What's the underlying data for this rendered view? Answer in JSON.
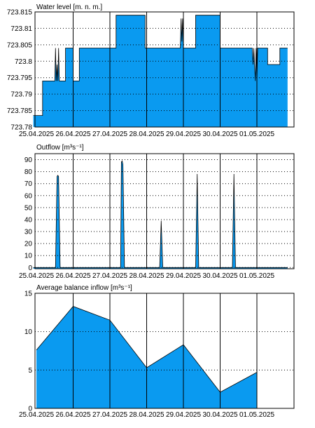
{
  "colors": {
    "fill": "#0a9af0",
    "line": "#000000",
    "grid": "#000000"
  },
  "chart_data": [
    {
      "type": "area",
      "title": "Water level [m. n. m.]",
      "x_axis": "time",
      "x_ticks": [
        "25.04.2025",
        "26.04.2025",
        "27.04.2025",
        "28.04.2025",
        "29.04.2025",
        "30.04.2025",
        "01.05.2025"
      ],
      "ylim": [
        723.78,
        723.815
      ],
      "y_ticks": [
        "723.78",
        "723.785",
        "723.79",
        "723.795",
        "723.8",
        "723.805",
        "723.81",
        "723.815"
      ],
      "grid": true,
      "points": [
        [
          "2025-04-24 22:00",
          723.7835
        ],
        [
          "2025-04-25 04:00",
          723.7835
        ],
        [
          "2025-04-25 04:00",
          723.794
        ],
        [
          "2025-04-25 12:00",
          723.794
        ],
        [
          "2025-04-25 12:30",
          723.804
        ],
        [
          "2025-04-25 13:00",
          723.794
        ],
        [
          "2025-04-25 13:30",
          723.799
        ],
        [
          "2025-04-25 14:00",
          723.794
        ],
        [
          "2025-04-25 14:30",
          723.804
        ],
        [
          "2025-04-25 15:00",
          723.794
        ],
        [
          "2025-04-25 19:00",
          723.794
        ],
        [
          "2025-04-25 19:00",
          723.804
        ],
        [
          "2025-04-26 00:00",
          723.804
        ],
        [
          "2025-04-26 00:00",
          723.794
        ],
        [
          "2025-04-26 04:00",
          723.794
        ],
        [
          "2025-04-26 04:00",
          723.804
        ],
        [
          "2025-04-27 04:00",
          723.804
        ],
        [
          "2025-04-27 04:00",
          723.814
        ],
        [
          "2025-04-27 23:00",
          723.814
        ],
        [
          "2025-04-27 23:00",
          723.804
        ],
        [
          "2025-04-28 22:00",
          723.804
        ],
        [
          "2025-04-28 22:30",
          723.813
        ],
        [
          "2025-04-28 23:00",
          723.806
        ],
        [
          "2025-04-28 23:30",
          723.813
        ],
        [
          "2025-04-29 00:00",
          723.804
        ],
        [
          "2025-04-29 08:00",
          723.804
        ],
        [
          "2025-04-29 08:00",
          723.814
        ],
        [
          "2025-04-30 00:00",
          723.814
        ],
        [
          "2025-04-30 00:00",
          723.804
        ],
        [
          "2025-04-30 21:00",
          723.804
        ],
        [
          "2025-04-30 21:30",
          723.799
        ],
        [
          "2025-04-30 22:00",
          723.804
        ],
        [
          "2025-04-30 23:00",
          723.794
        ],
        [
          "2025-04-30 23:30",
          723.804
        ],
        [
          "2025-05-01 00:00",
          723.794
        ],
        [
          "2025-05-01 00:30",
          723.804
        ],
        [
          "2025-05-01 07:00",
          723.804
        ],
        [
          "2025-05-01 07:00",
          723.799
        ],
        [
          "2025-05-01 15:00",
          723.799
        ],
        [
          "2025-05-01 15:00",
          723.804
        ],
        [
          "2025-05-01 20:00",
          723.804
        ]
      ]
    },
    {
      "type": "area",
      "title": "Outflow [m³s⁻¹]",
      "x_axis": "time",
      "x_ticks": [
        "25.04.2025",
        "26.04.2025",
        "27.04.2025",
        "28.04.2025",
        "29.04.2025",
        "30.04.2025",
        "01.05.2025"
      ],
      "ylim": [
        -1,
        95
      ],
      "y_ticks": [
        "0",
        "10",
        "20",
        "30",
        "40",
        "50",
        "60",
        "70",
        "80",
        "90"
      ],
      "grid": true,
      "points": [
        [
          "2025-04-24 22:00",
          0
        ],
        [
          "2025-04-25 12:30",
          0
        ],
        [
          "2025-04-25 13:30",
          76
        ],
        [
          "2025-04-25 14:00",
          77
        ],
        [
          "2025-04-25 14:30",
          76
        ],
        [
          "2025-04-25 15:30",
          0
        ],
        [
          "2025-04-27 07:00",
          0
        ],
        [
          "2025-04-27 07:30",
          88
        ],
        [
          "2025-04-27 08:00",
          89
        ],
        [
          "2025-04-27 08:30",
          86
        ],
        [
          "2025-04-27 09:30",
          0
        ],
        [
          "2025-04-28 08:30",
          0
        ],
        [
          "2025-04-28 09:30",
          39
        ],
        [
          "2025-04-28 10:30",
          0
        ],
        [
          "2025-04-29 08:00",
          0
        ],
        [
          "2025-04-29 09:00",
          78
        ],
        [
          "2025-04-29 10:00",
          0
        ],
        [
          "2025-04-30 08:00",
          0
        ],
        [
          "2025-04-30 09:00",
          78
        ],
        [
          "2025-04-30 10:00",
          0
        ],
        [
          "2025-05-01 20:00",
          0
        ]
      ]
    },
    {
      "type": "area",
      "title": "Average balance inflow  [m³s⁻¹]",
      "x_axis": "time",
      "x_ticks": [
        "25.04.2025",
        "26.04.2025",
        "27.04.2025",
        "28.04.2025",
        "29.04.2025",
        "30.04.2025",
        "01.05.2025"
      ],
      "ylim": [
        0,
        15
      ],
      "y_ticks": [
        "0",
        "5",
        "10",
        "15"
      ],
      "grid": true,
      "points": [
        [
          "2025-04-25 00:00",
          7.6
        ],
        [
          "2025-04-26 00:00",
          13.3
        ],
        [
          "2025-04-27 00:00",
          11.5
        ],
        [
          "2025-04-28 00:00",
          5.3
        ],
        [
          "2025-04-29 00:00",
          8.3
        ],
        [
          "2025-04-30 00:00",
          2.1
        ],
        [
          "2025-05-01 00:00",
          4.7
        ]
      ]
    }
  ]
}
